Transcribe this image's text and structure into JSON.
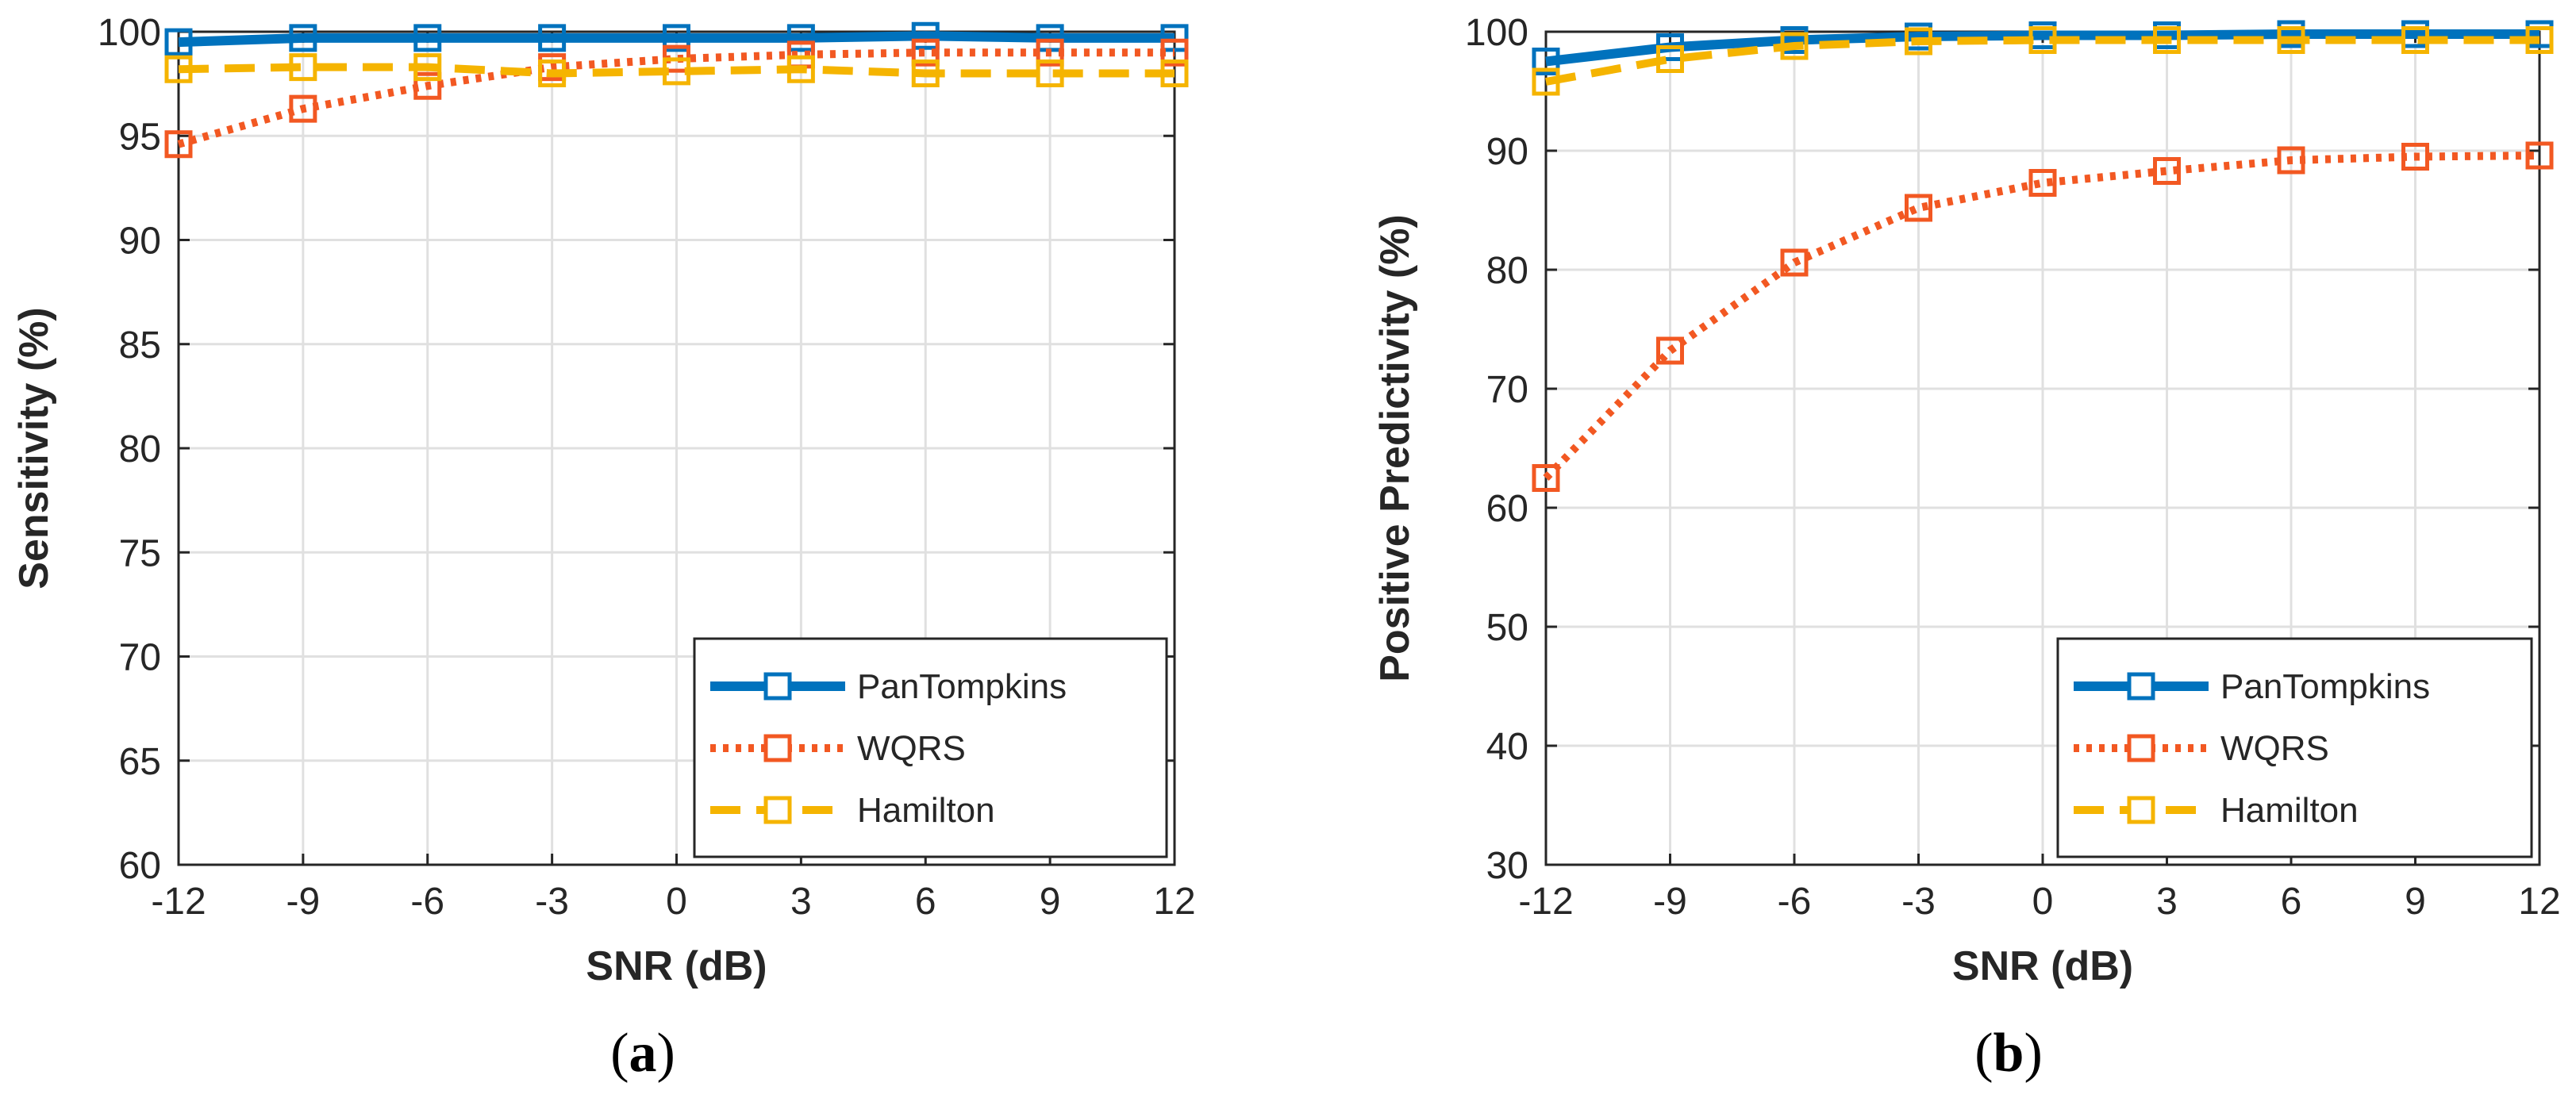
{
  "chart_data": [
    {
      "type": "line",
      "caption": "a",
      "xlabel": "SNR (dB)",
      "ylabel": "Sensitivity (%)",
      "x": [
        -12,
        -9,
        -6,
        -3,
        0,
        3,
        6,
        9,
        12
      ],
      "xticks": [
        "-12",
        "-9",
        "-6",
        "-3",
        "0",
        "3",
        "6",
        "9",
        "12"
      ],
      "ylim": [
        60,
        100
      ],
      "yticks": [
        60,
        65,
        70,
        75,
        80,
        85,
        90,
        95,
        100
      ],
      "grid": true,
      "legend_position": "bottom-right",
      "series": [
        {
          "name": "PanTompkins",
          "style": "solid",
          "values": [
            99.5,
            99.7,
            99.7,
            99.7,
            99.7,
            99.7,
            99.8,
            99.7,
            99.7
          ]
        },
        {
          "name": "WQRS",
          "style": "dotted",
          "values": [
            94.6,
            96.3,
            97.4,
            98.3,
            98.7,
            98.9,
            99.0,
            99.0,
            99.0
          ]
        },
        {
          "name": "Hamilton",
          "style": "dashed",
          "values": [
            98.2,
            98.3,
            98.3,
            98.0,
            98.1,
            98.2,
            98.0,
            98.0,
            98.0
          ]
        }
      ]
    },
    {
      "type": "line",
      "caption": "b",
      "xlabel": "SNR (dB)",
      "ylabel": "Positive Predictivity (%)",
      "x": [
        -12,
        -9,
        -6,
        -3,
        0,
        3,
        6,
        9,
        12
      ],
      "xticks": [
        "-12",
        "-9",
        "-6",
        "-3",
        "0",
        "3",
        "6",
        "9",
        "12"
      ],
      "ylim": [
        30,
        100
      ],
      "yticks": [
        30,
        40,
        50,
        60,
        70,
        80,
        90,
        100
      ],
      "grid": true,
      "legend_position": "bottom-right",
      "series": [
        {
          "name": "PanTompkins",
          "style": "solid",
          "values": [
            97.5,
            98.7,
            99.3,
            99.6,
            99.7,
            99.7,
            99.8,
            99.8,
            99.8
          ]
        },
        {
          "name": "WQRS",
          "style": "dotted",
          "values": [
            62.5,
            73.2,
            80.6,
            85.2,
            87.3,
            88.3,
            89.2,
            89.5,
            89.6
          ]
        },
        {
          "name": "Hamilton",
          "style": "dashed",
          "values": [
            95.8,
            97.7,
            98.8,
            99.2,
            99.3,
            99.3,
            99.3,
            99.3,
            99.3
          ]
        }
      ]
    }
  ],
  "colors": {
    "PanTompkins": "#0072BD",
    "WQRS": "#F25822",
    "Hamilton": "#F5B400",
    "grid": "#e0e0e0",
    "axis": "#262626"
  }
}
